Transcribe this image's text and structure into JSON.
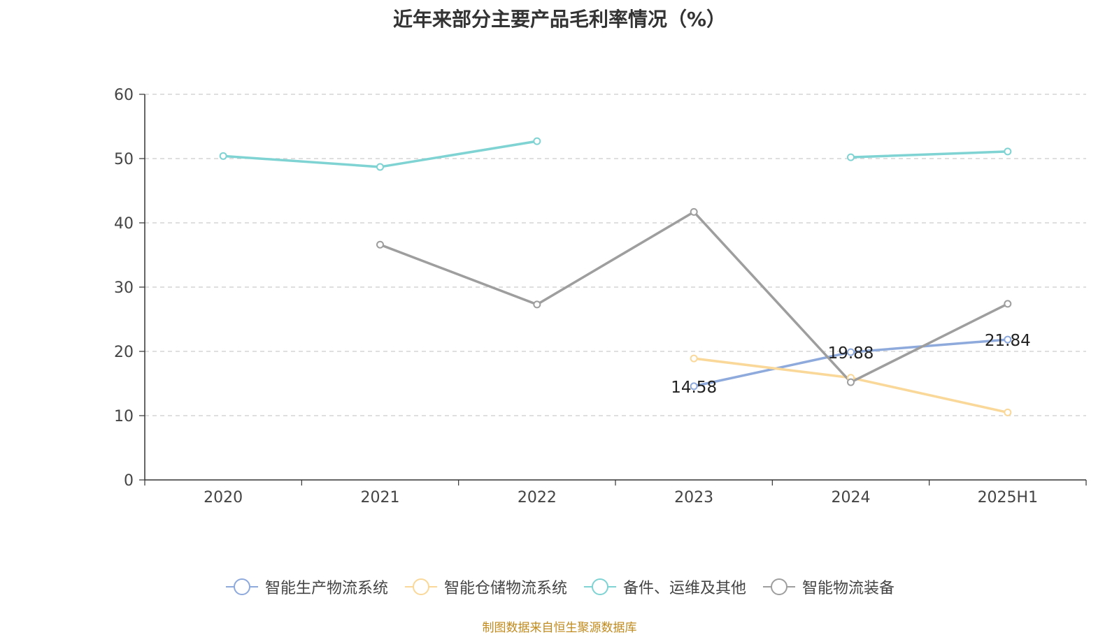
{
  "title": "近年来部分主要产品毛利率情况（%）",
  "source": "制图数据来自恒生聚源数据库",
  "legend": [
    {
      "label": "智能生产物流系统",
      "color": "#8ea9db"
    },
    {
      "label": "智能仓储物流系统",
      "color": "#f9d89a"
    },
    {
      "label": "备件、运维及其他",
      "color": "#7fd3d3"
    },
    {
      "label": "智能物流装备",
      "color": "#9e9e9e"
    }
  ],
  "chart_data": {
    "type": "line",
    "title": "近年来部分主要产品毛利率情况（%）",
    "xlabel": "",
    "ylabel": "",
    "categories": [
      "2020",
      "2021",
      "2022",
      "2023",
      "2024",
      "2025H1"
    ],
    "ylim": [
      0,
      60
    ],
    "yticks": [
      0,
      10,
      20,
      30,
      40,
      50,
      60
    ],
    "grid": true,
    "legend_position": "bottom",
    "series": [
      {
        "name": "智能生产物流系统",
        "color": "#8ea9db",
        "values": [
          null,
          null,
          null,
          14.58,
          19.88,
          21.84
        ],
        "labels": [
          null,
          null,
          null,
          "14.58",
          "19.88",
          "21.84"
        ]
      },
      {
        "name": "智能仓储物流系统",
        "color": "#f9d89a",
        "values": [
          null,
          null,
          null,
          18.9,
          15.9,
          10.5
        ]
      },
      {
        "name": "备件、运维及其他",
        "color": "#7fd3d3",
        "values": [
          50.4,
          48.7,
          52.7,
          null,
          50.2,
          51.1
        ]
      },
      {
        "name": "智能物流装备",
        "color": "#9e9e9e",
        "values": [
          null,
          36.6,
          27.3,
          41.7,
          15.2,
          27.4
        ]
      }
    ]
  }
}
